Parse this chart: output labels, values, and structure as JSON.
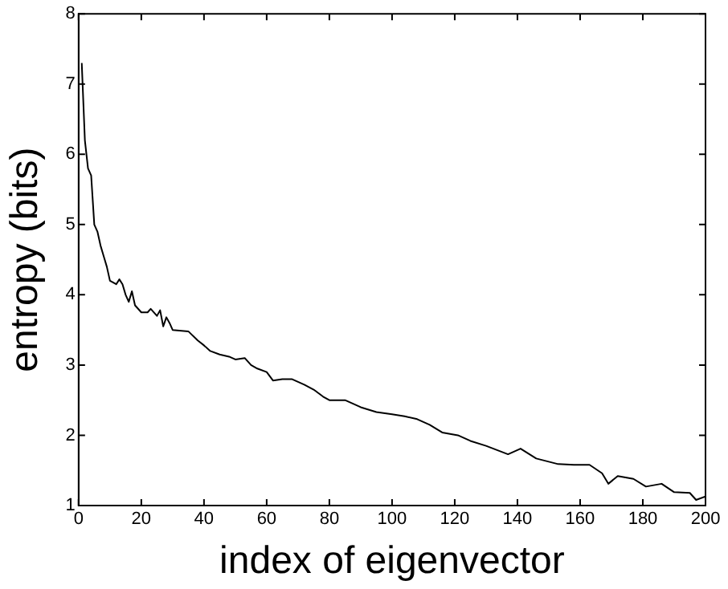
{
  "chart_data": {
    "type": "line",
    "xlabel": "index of eigenvector",
    "ylabel": "entropy (bits)",
    "x": [
      1,
      2,
      3,
      4,
      5,
      6,
      7,
      8,
      9,
      10,
      12,
      13,
      14,
      15,
      16,
      17,
      18,
      20,
      22,
      23,
      25,
      26,
      27,
      28,
      29,
      30,
      35,
      38,
      40,
      42,
      45,
      48,
      50,
      53,
      55,
      57,
      60,
      62,
      65,
      68,
      72,
      75,
      78,
      80,
      85,
      90,
      95,
      100,
      104,
      108,
      112,
      116,
      121,
      125,
      130,
      137,
      141,
      146,
      153,
      158,
      163,
      167,
      169,
      172,
      177,
      181,
      186,
      190,
      195,
      197,
      200
    ],
    "series": [
      {
        "color": "#000000",
        "values": [
          7.3,
          6.2,
          5.8,
          5.7,
          5.0,
          4.9,
          4.7,
          4.55,
          4.4,
          4.2,
          4.15,
          4.22,
          4.15,
          4.0,
          3.9,
          4.05,
          3.85,
          3.75,
          3.75,
          3.8,
          3.7,
          3.78,
          3.55,
          3.68,
          3.6,
          3.5,
          3.48,
          3.35,
          3.28,
          3.2,
          3.15,
          3.12,
          3.08,
          3.1,
          3.0,
          2.95,
          2.9,
          2.78,
          2.8,
          2.8,
          2.72,
          2.65,
          2.55,
          2.5,
          2.5,
          2.4,
          2.33,
          2.3,
          2.27,
          2.23,
          2.15,
          2.04,
          2.0,
          1.92,
          1.85,
          1.73,
          1.81,
          1.67,
          1.59,
          1.58,
          1.58,
          1.46,
          1.31,
          1.42,
          1.38,
          1.27,
          1.31,
          1.19,
          1.18,
          1.08,
          1.13
        ]
      }
    ],
    "xlim": [
      0,
      200
    ],
    "xticks": [
      0,
      20,
      40,
      60,
      80,
      100,
      120,
      140,
      160,
      180,
      200
    ],
    "ylim": [
      1,
      8
    ],
    "yticks": [
      1,
      2,
      3,
      4,
      5,
      6,
      7,
      8
    ],
    "grid": false,
    "legend": false,
    "marker": "none",
    "line_style": "solid"
  }
}
